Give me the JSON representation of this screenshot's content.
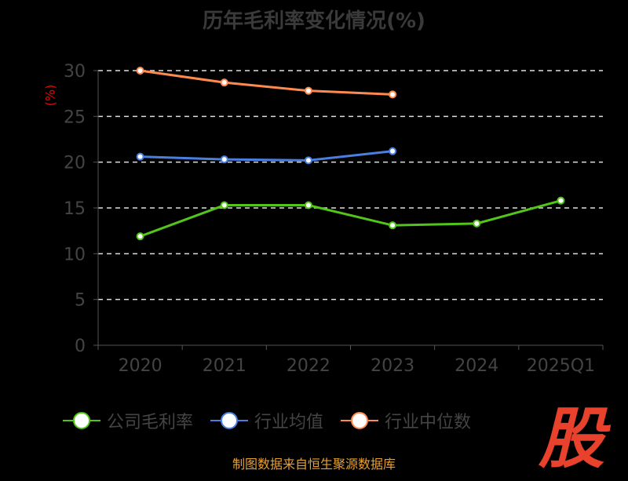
{
  "chart_data": {
    "type": "line",
    "title": "历年毛利率变化情况(%)",
    "ylabel": "(%)",
    "xlabel": "",
    "categories": [
      "2020",
      "2021",
      "2022",
      "2023",
      "2024",
      "2025Q1"
    ],
    "yticks": [
      0,
      5,
      10,
      15,
      20,
      25,
      30
    ],
    "ylim": [
      0,
      30
    ],
    "grid": true,
    "legend_position": "bottom",
    "series": [
      {
        "name": "公司毛利率",
        "color": "#52c41a",
        "values": [
          11.9,
          15.3,
          15.3,
          13.1,
          13.3,
          15.8
        ]
      },
      {
        "name": "行业均值",
        "color": "#4a7fe0",
        "values": [
          20.6,
          20.3,
          20.2,
          21.2,
          null,
          null
        ]
      },
      {
        "name": "行业中位数",
        "color": "#ff8a50",
        "values": [
          30.0,
          28.7,
          27.8,
          27.4,
          null,
          null
        ]
      }
    ]
  },
  "watermark": "股",
  "source": "制图数据来自恒生聚源数据库"
}
